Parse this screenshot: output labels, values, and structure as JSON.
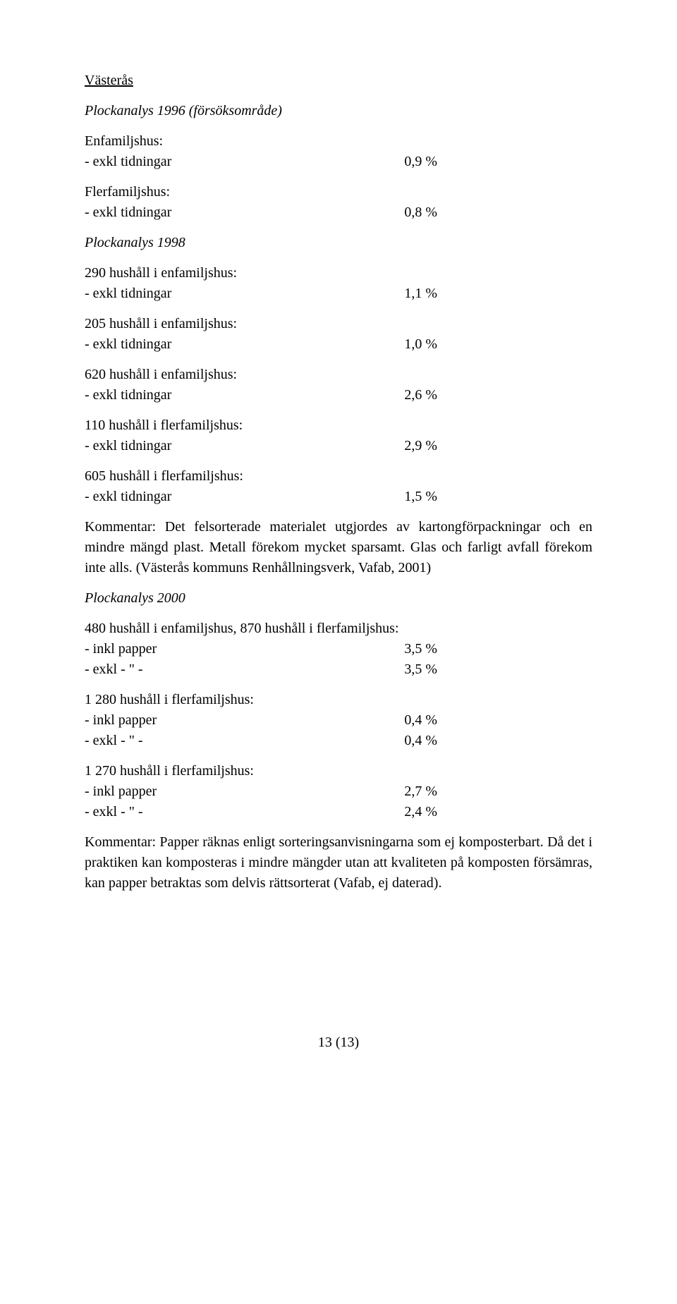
{
  "title": "Västerås",
  "sections": {
    "plock1996": {
      "label": "Plockanalys 1996 (försöksområde)",
      "enfam_label": "Enfamiljshus:",
      "enfam_item": "- exkl  tidningar",
      "enfam_val": "0,9 %",
      "fler_label": "Flerfamiljshus:",
      "fler_item": "- exkl tidningar",
      "fler_val": "0,8 %"
    },
    "plock1998": {
      "label": "Plockanalys 1998",
      "g1_label": "290 hushåll i enfamiljshus:",
      "g1_item": "- exkl  tidningar",
      "g1_val": "1,1 %",
      "g2_label": "205 hushåll i enfamiljshus:",
      "g2_item": "- exkl tidningar",
      "g2_val": "1,0 %",
      "g3_label": "620 hushåll i enfamiljshus:",
      "g3_item": "- exkl tidningar",
      "g3_val": "2,6 %",
      "g4_label": "110 hushåll i flerfamiljshus:",
      "g4_item": "- exkl tidningar",
      "g4_val": "2,9 %",
      "g5_label": "605 hushåll i flerfamiljshus:",
      "g5_item": "- exkl tidningar",
      "g5_val": "1,5 %",
      "comment": "Kommentar: Det felsorterade materialet utgjordes av kartongförpackningar och en mindre mängd plast. Metall förekom mycket sparsamt. Glas och farligt avfall förekom inte alls. (Västerås kommuns Renhållningsverk, Vafab, 2001)"
    },
    "plock2000": {
      "label": "Plockanalys 2000",
      "g1_label": "480 hushåll i enfamiljshus, 870 hushåll i flerfamiljshus:",
      "g1_item1": "- inkl papper",
      "g1_val1": "3,5 %",
      "g1_item2": "- exkl  -  \"  -",
      "g1_val2": "3,5 %",
      "g2_label": "1 280 hushåll i flerfamiljshus:",
      "g2_item1": "- inkl papper",
      "g2_val1": "0,4 %",
      "g2_item2": "- exkl  -  \"  -",
      "g2_val2": "0,4 %",
      "g3_label": "1 270 hushåll i flerfamiljshus:",
      "g3_item1": "- inkl papper",
      "g3_val1": "2,7 %",
      "g3_item2": "- exkl  -  \"  -",
      "g3_val2": "2,4 %",
      "comment": "Kommentar: Papper räknas enligt sorteringsanvisningarna som ej komposterbart. Då det i praktiken kan komposteras i mindre mängder utan att kvaliteten på komposten försämras, kan papper betraktas som delvis rättsorterat (Vafab, ej daterad)."
    }
  },
  "footer": "13 (13)"
}
